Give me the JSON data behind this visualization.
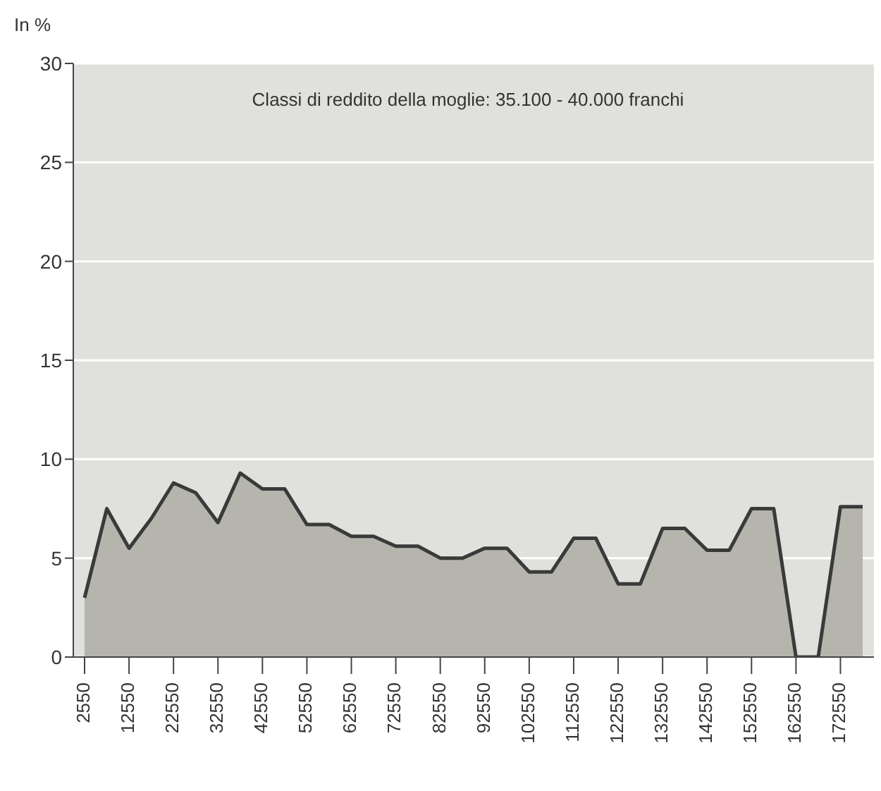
{
  "chart_data": {
    "type": "area",
    "ylabel": "In %",
    "annotations": [
      "Classi di reddito della moglie: 35.100 - 40.000 franchi"
    ],
    "categories": [
      "2550",
      null,
      "12550",
      null,
      "22550",
      null,
      "32550",
      null,
      "42550",
      null,
      "52550",
      null,
      "62550",
      null,
      "72550",
      null,
      "82550",
      null,
      "92550",
      null,
      "102550",
      null,
      "112550",
      null,
      "122550",
      null,
      "132550",
      null,
      "142550",
      null,
      "152550",
      null,
      "162550",
      null,
      "172550",
      null
    ],
    "values": [
      3,
      7.5,
      5.5,
      7,
      8.8,
      8.3,
      6.8,
      9.3,
      8.5,
      8.5,
      6.7,
      6.7,
      6.1,
      6.1,
      5.6,
      5.6,
      5,
      5,
      5.5,
      5.5,
      4.3,
      4.3,
      6,
      6,
      3.7,
      3.7,
      6.5,
      6.5,
      5.4,
      5.4,
      7.5,
      7.5,
      0,
      0,
      7.6,
      7.6
    ],
    "color": "#b5b5ad",
    "ylim": [
      0,
      30
    ],
    "yticks": [
      0,
      5,
      10,
      15,
      20,
      25,
      30
    ],
    "grid": "y"
  }
}
